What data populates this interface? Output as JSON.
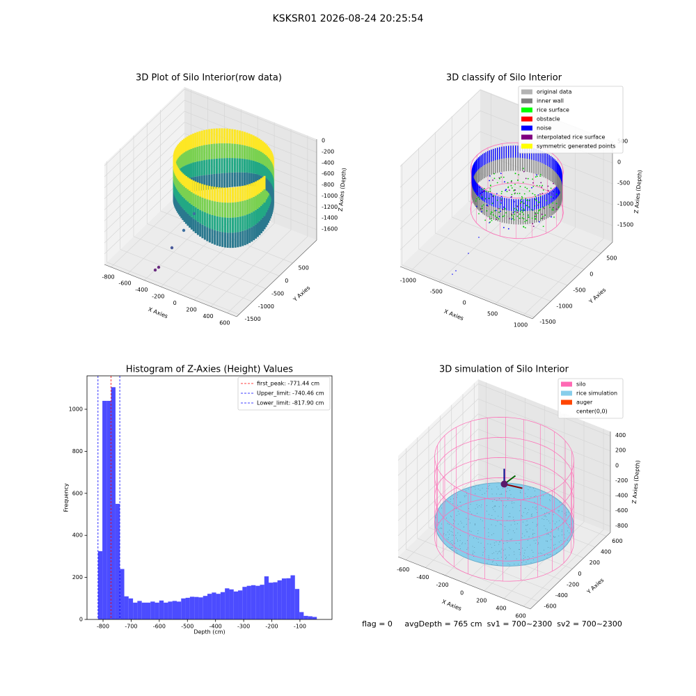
{
  "title": "KSKSR01 2026-08-24 20:25:54",
  "footer": "flag = 0     avgDepth = 765 cm  sv1 = 700~2300  sv2 = 700~2300",
  "chart_data": [
    {
      "type": "scatter3d",
      "title": "3D Plot of Silo Interior(row data)",
      "xlabel": "X Axies",
      "ylabel": "Y Axies",
      "zlabel": "Z Axies (Depth)",
      "xlim": [
        -880,
        710
      ],
      "ylim": [
        -1590,
        1395
      ],
      "zlim": [
        -1790,
        40
      ],
      "xticks": [
        -800,
        -600,
        -400,
        -200,
        0,
        200,
        400,
        600
      ],
      "yticks": [
        -1500,
        -1000,
        -500,
        0,
        500
      ],
      "zticks": [
        -1600,
        -1400,
        -1200,
        -1000,
        -800,
        -600,
        -400,
        -200,
        0
      ]
    },
    {
      "type": "scatter3d",
      "title": "3D classify of Silo Interior",
      "xlabel": "X Axies",
      "ylabel": "Y Axies",
      "zlabel": "Z Axies (Depth)",
      "xlim": [
        -1190,
        1160
      ],
      "ylim": [
        -1550,
        850
      ],
      "zlim": [
        -1900,
        520
      ],
      "xticks": [
        -1000,
        -500,
        0,
        500,
        1000
      ],
      "yticks": [
        -1500,
        -1000,
        -500,
        0,
        500
      ],
      "zticks": [
        -1500,
        -1000,
        -500,
        0,
        500
      ],
      "legend": [
        {
          "name": "original data",
          "color": "#b3b3b3"
        },
        {
          "name": "inner wall",
          "color": "#808080"
        },
        {
          "name": "rice surface",
          "color": "#00ff00"
        },
        {
          "name": "obstacle",
          "color": "#ff0000"
        },
        {
          "name": "noise",
          "color": "#0000ff"
        },
        {
          "name": "interpolated rice surface",
          "color": "#800080"
        },
        {
          "name": "symmetric generated points",
          "color": "#ffff00"
        }
      ]
    },
    {
      "type": "histogram",
      "title": "Histogram of Z-Axies (Height) Values",
      "xlabel": "Depth (cm)",
      "ylabel": "Frequency",
      "color": "#4c4cff",
      "bins": [
        -817.9,
        -802.3,
        -786.8,
        -771.2,
        -755.7,
        -740.1,
        -724.5,
        -709.0,
        -693.4,
        -677.9,
        -662.3,
        -646.7,
        -631.2,
        -615.6,
        -600.1,
        -584.5,
        -568.9,
        -553.4,
        -537.8,
        -522.3,
        -506.7,
        -491.1,
        -475.6,
        -460.0,
        -444.5,
        -428.9,
        -413.3,
        -397.8,
        -382.2,
        -366.7,
        -351.1,
        -335.5,
        -320.0,
        -304.4,
        -288.9,
        -273.3,
        -257.7,
        -242.2,
        -226.6,
        -211.1,
        -195.5,
        -179.9,
        -164.4,
        -148.8,
        -133.3,
        -117.7,
        -102.1,
        -86.6,
        -71.0,
        -55.5,
        -39.9
      ],
      "counts": [
        325,
        1040,
        1040,
        1105,
        550,
        240,
        110,
        100,
        80,
        88,
        80,
        80,
        85,
        80,
        90,
        80,
        85,
        88,
        85,
        100,
        103,
        108,
        107,
        105,
        112,
        122,
        128,
        122,
        130,
        148,
        143,
        133,
        138,
        155,
        160,
        163,
        160,
        165,
        205,
        175,
        177,
        186,
        195,
        196,
        210,
        145,
        35,
        17,
        15,
        12
      ],
      "xlim": [
        -857,
        14
      ],
      "ylim": [
        0,
        1159
      ],
      "xticks": [
        -800,
        -700,
        -600,
        -500,
        -400,
        -300,
        -200,
        -100
      ],
      "yticks": [
        0,
        200,
        400,
        600,
        800,
        1000
      ],
      "lines": [
        {
          "label": "first_peak: -771.44 cm",
          "value": -771.44,
          "color": "#ff0000"
        },
        {
          "label": "Upper_limit: -740.46 cm",
          "value": -740.46,
          "color": "#0000ff"
        },
        {
          "label": "Lower_limit: -817.90 cm",
          "value": -817.9,
          "color": "#0000ff"
        }
      ]
    },
    {
      "type": "scatter3d",
      "title": "3D simulation of Silo Interior",
      "xlabel": "X Axies",
      "ylabel": "Y Axies",
      "zlabel": "Z Axies (Depth)",
      "xlim": [
        -680,
        670
      ],
      "ylim": [
        -740,
        670
      ],
      "zlim": [
        -880,
        460
      ],
      "xticks": [
        -600,
        -400,
        -200,
        0,
        200,
        400,
        600
      ],
      "yticks": [
        -600,
        -400,
        -200,
        0,
        200,
        400,
        600
      ],
      "zticks": [
        -800,
        -600,
        -400,
        -200,
        0,
        200,
        400
      ],
      "legend": [
        {
          "name": "silo",
          "color": "#ff69b4"
        },
        {
          "name": "rice simulation",
          "color": "#87ceeb"
        },
        {
          "name": "auger",
          "color": "#ff4500"
        },
        {
          "name": "center(0,0)",
          "color": "#ffffff"
        }
      ]
    }
  ]
}
